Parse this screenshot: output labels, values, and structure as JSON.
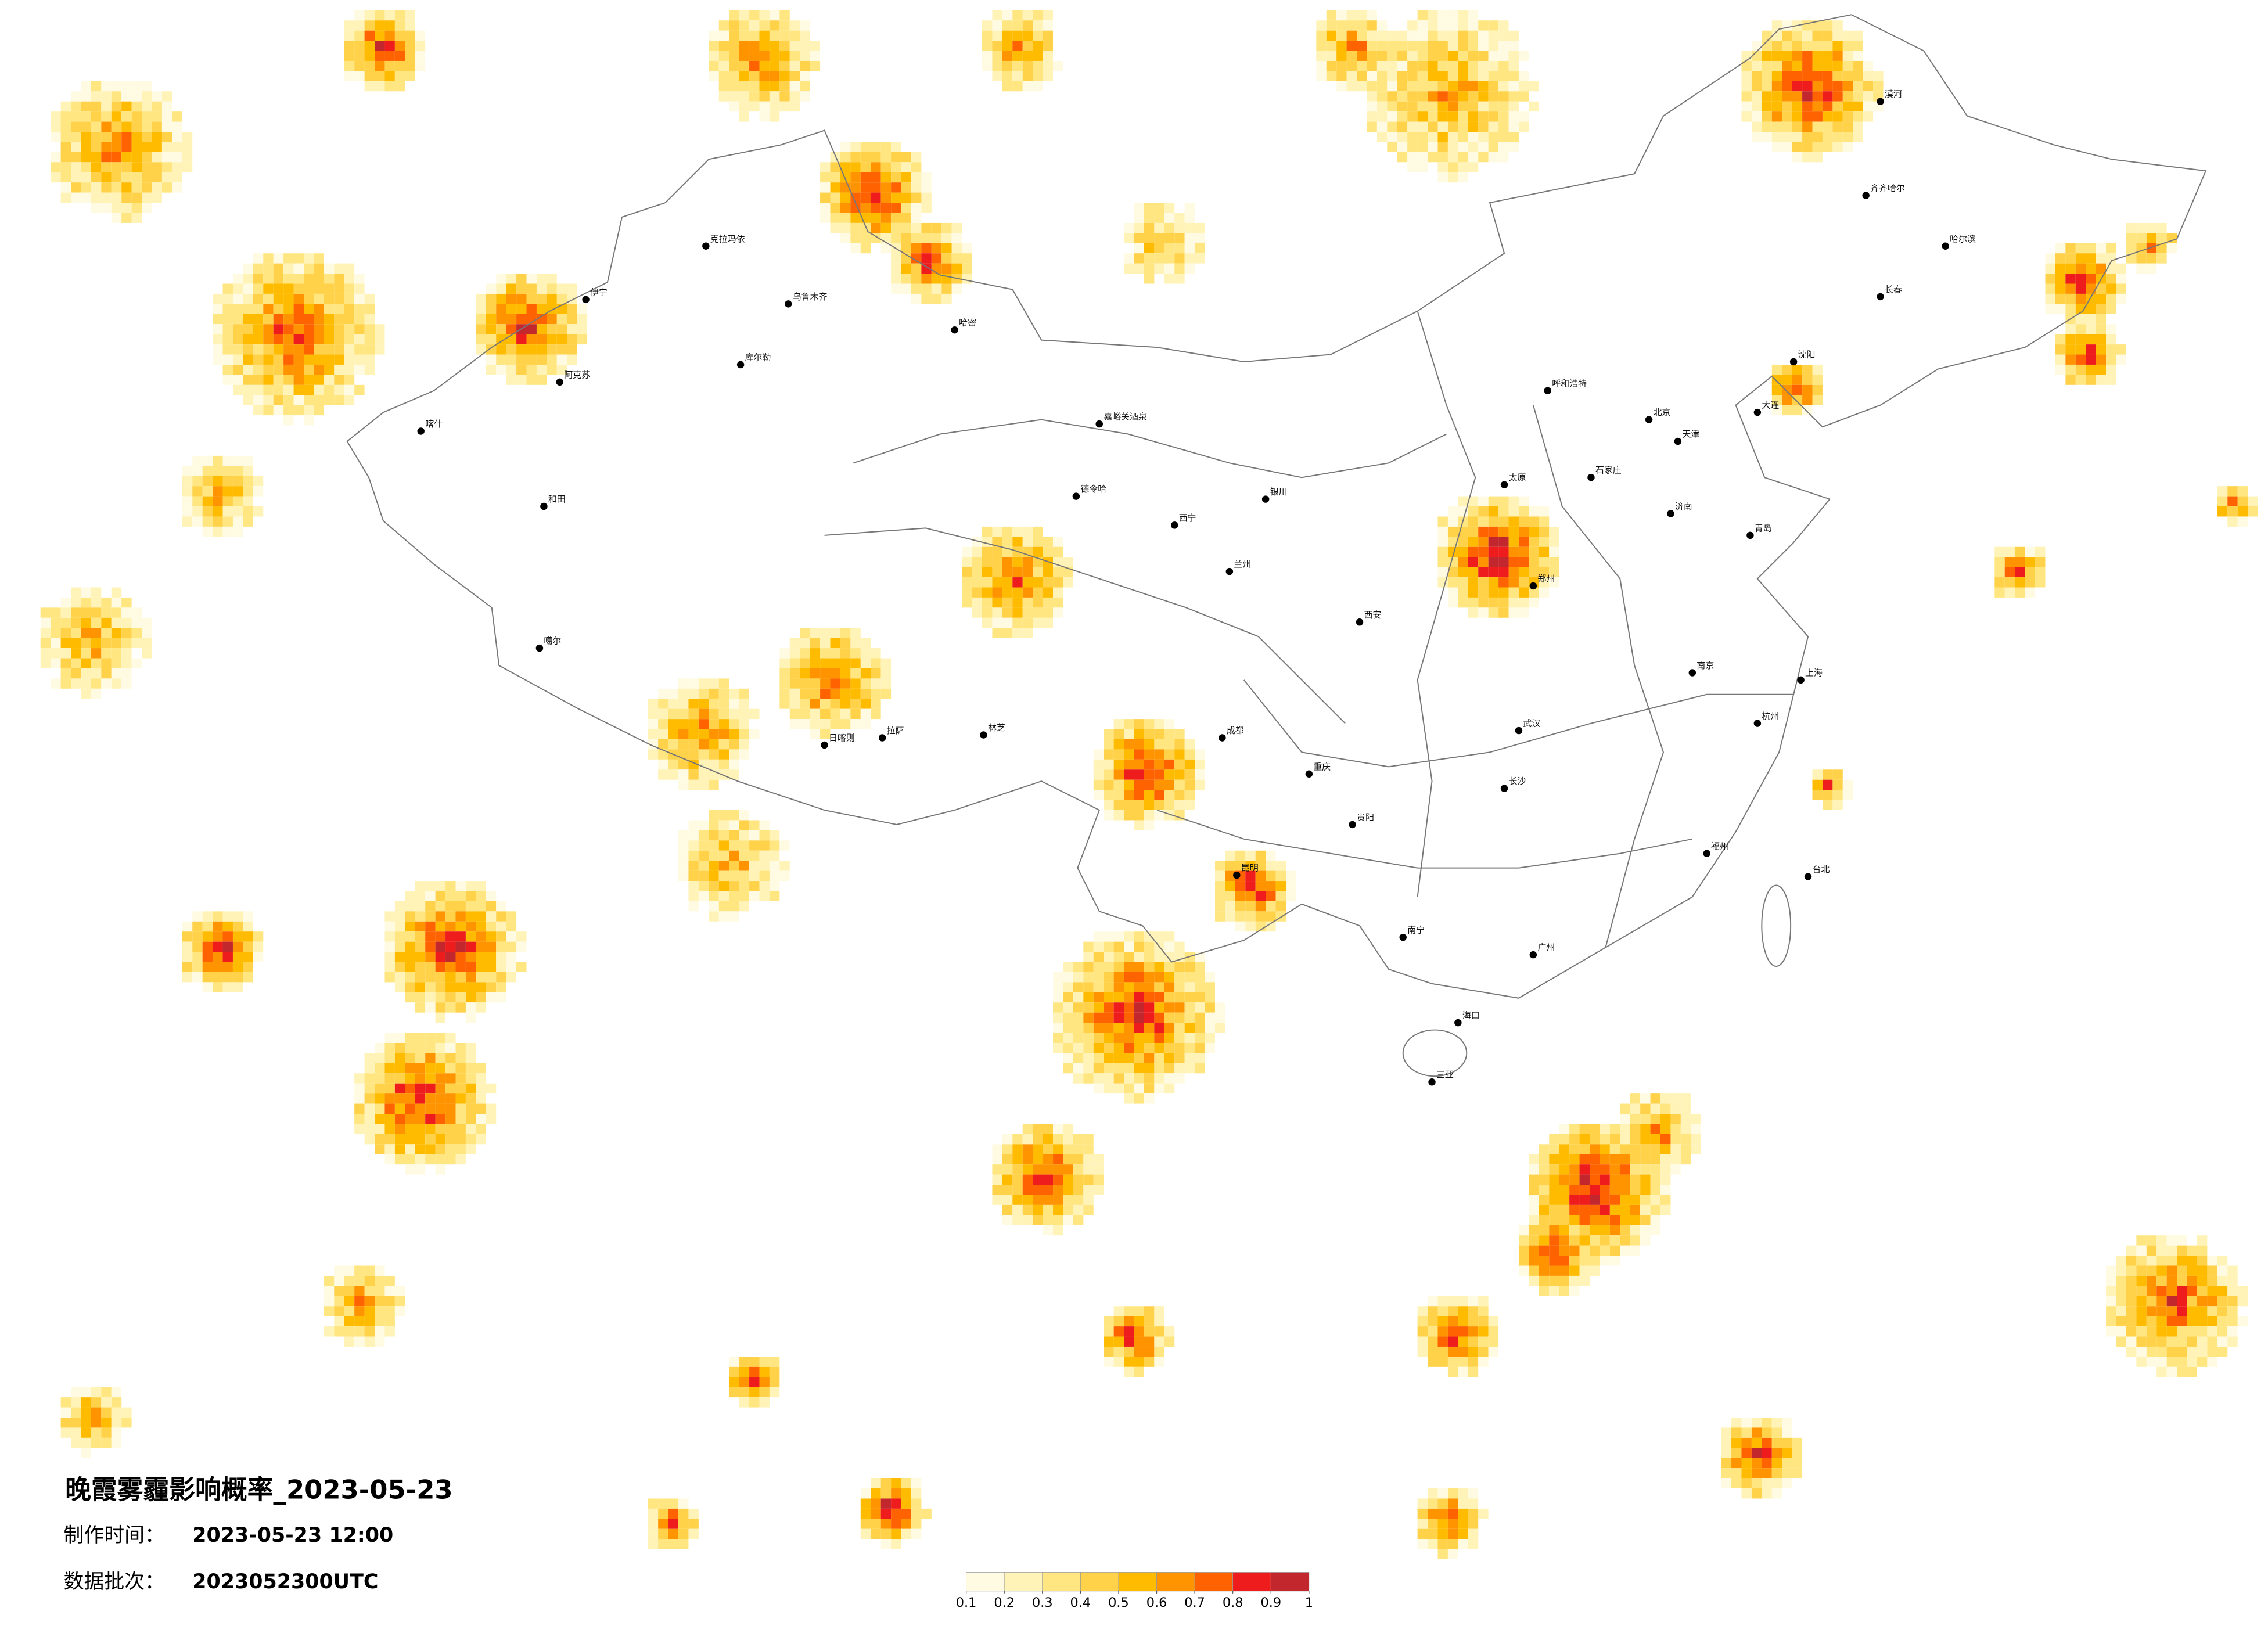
{
  "title": "晚霞雾霾影响概率_2023-05-23",
  "made_label": "制作时间：",
  "made_value": "2023-05-23 12:00",
  "batch_label": "数据批次：",
  "batch_value": "2023052300UTC",
  "colorbar": {
    "ticks": [
      0.1,
      0.2,
      0.3,
      0.4,
      0.5,
      0.6,
      0.7,
      0.8,
      0.9,
      1
    ],
    "colors": [
      "#fffbe3",
      "#fff3b8",
      "#ffe680",
      "#ffd24a",
      "#ffbb00",
      "#ff9400",
      "#ff6200",
      "#ee1c1c",
      "#c1272d"
    ]
  },
  "cities": [
    "克拉玛依",
    "伊宁",
    "乌鲁木齐",
    "阿克苏",
    "库尔勒",
    "哈密",
    "和田",
    "喀什",
    "噶尔",
    "嘉峪关酒泉",
    "德令哈",
    "西宁",
    "兰州",
    "银川",
    "拉萨",
    "日喀则",
    "林芝",
    "成都",
    "重庆",
    "昆明",
    "贵阳",
    "南宁",
    "海口",
    "三亚",
    "广州",
    "福州",
    "台北",
    "杭州",
    "上海",
    "南京",
    "武汉",
    "长沙",
    "郑州",
    "西安",
    "太原",
    "石家庄",
    "北京",
    "天津",
    "济南",
    "沈阳",
    "长春",
    "哈尔滨",
    "呼和浩特",
    "大连",
    "青岛",
    "漠河",
    "齐齐哈尔"
  ]
}
